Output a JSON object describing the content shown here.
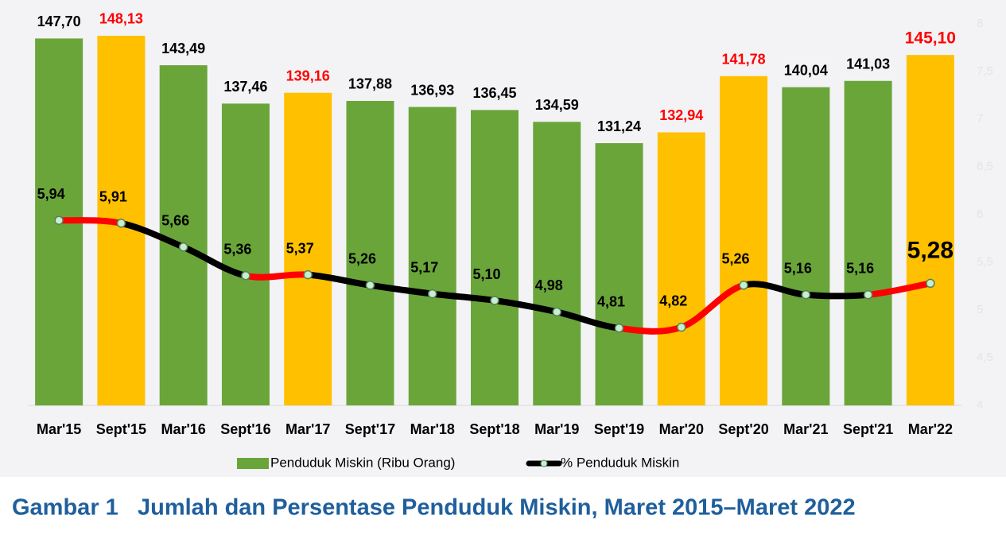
{
  "chart_data": {
    "type": "combo",
    "categories": [
      "Mar'15",
      "Sept'15",
      "Mar'16",
      "Sept'16",
      "Mar'17",
      "Sept'17",
      "Mar'18",
      "Sept'18",
      "Mar'19",
      "Sept'19",
      "Mar'20",
      "Sept'20",
      "Mar'21",
      "Sept'21",
      "Mar'22"
    ],
    "ylim": [
      90,
      150
    ],
    "y2lim": [
      4,
      8
    ],
    "y2ticks": [
      4,
      {
        "value": 4.5,
        "label": "4,5"
      },
      5,
      {
        "value": 5.5,
        "label": "5,5"
      },
      6,
      {
        "value": 6.5,
        "label": "6,5"
      },
      7,
      {
        "value": 7.5,
        "label": "7,5"
      },
      8
    ],
    "series": [
      {
        "name": "Penduduk Miskin (Ribu Orang)",
        "type": "bar",
        "color": "#6aa53a",
        "colors": [
          "#6aa53a",
          "#ffc000",
          "#6aa53a",
          "#6aa53a",
          "#ffc000",
          "#6aa53a",
          "#6aa53a",
          "#6aa53a",
          "#6aa53a",
          "#6aa53a",
          "#ffc000",
          "#ffc000",
          "#6aa53a",
          "#6aa53a",
          "#ffc000"
        ],
        "label_colors": [
          "#000000",
          "#ff0000",
          "#000000",
          "#000000",
          "#ff0000",
          "#000000",
          "#000000",
          "#000000",
          "#000000",
          "#000000",
          "#ff0000",
          "#ff0000",
          "#000000",
          "#000000",
          "#ff0000"
        ],
        "values": [
          147.7,
          148.13,
          143.49,
          137.46,
          139.16,
          137.88,
          136.93,
          136.45,
          134.59,
          131.24,
          132.94,
          141.78,
          140.04,
          141.03,
          145.1
        ],
        "value_labels": [
          "147,70",
          "148,13",
          "143,49",
          "137,46",
          "139,16",
          "137,88",
          "136,93",
          "136,45",
          "134,59",
          "131,24",
          "132,94",
          "141,78",
          "140,04",
          "141,03",
          "145,10"
        ]
      },
      {
        "name": "% Penduduk Miskin",
        "type": "line",
        "axis": "y2",
        "color": "#000000",
        "segment_colors": [
          "#ff0000",
          "#000000",
          "#000000",
          "#ff0000",
          "#000000",
          "#000000",
          "#000000",
          "#000000",
          "#000000",
          "#ff0000",
          "#ff0000",
          "#000000",
          "#000000",
          "#ff0000"
        ],
        "values": [
          5.94,
          5.91,
          5.66,
          5.36,
          5.37,
          5.26,
          5.17,
          5.1,
          4.98,
          4.81,
          4.82,
          5.26,
          5.16,
          5.16,
          5.28
        ],
        "value_labels": [
          "5,94",
          "5,91",
          "5,66",
          "5,36",
          "5,37",
          "5,26",
          "5,17",
          "5,10",
          "4,98",
          "4,81",
          "4,82",
          "5,26",
          "5,16",
          "5,16",
          "5,28"
        ]
      }
    ],
    "caption_label": "Gambar 1",
    "caption": "Jumlah dan Persentase Penduduk Miskin, Maret 2015–Maret 2022"
  }
}
